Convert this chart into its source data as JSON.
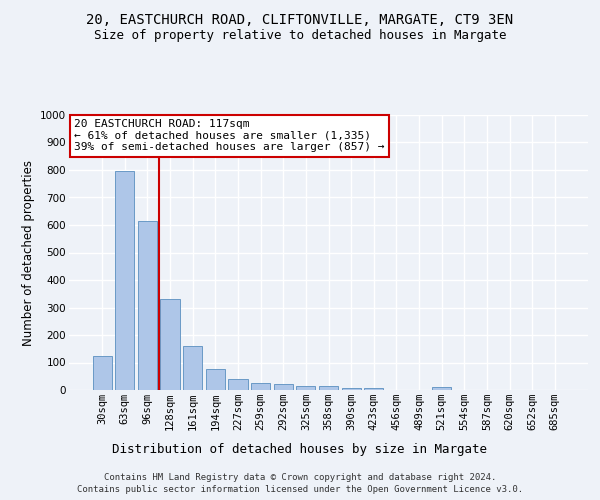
{
  "title1": "20, EASTCHURCH ROAD, CLIFTONVILLE, MARGATE, CT9 3EN",
  "title2": "Size of property relative to detached houses in Margate",
  "xlabel": "Distribution of detached houses by size in Margate",
  "ylabel": "Number of detached properties",
  "categories": [
    "30sqm",
    "63sqm",
    "96sqm",
    "128sqm",
    "161sqm",
    "194sqm",
    "227sqm",
    "259sqm",
    "292sqm",
    "325sqm",
    "358sqm",
    "390sqm",
    "423sqm",
    "456sqm",
    "489sqm",
    "521sqm",
    "554sqm",
    "587sqm",
    "620sqm",
    "652sqm",
    "685sqm"
  ],
  "values": [
    125,
    795,
    615,
    330,
    160,
    78,
    40,
    25,
    22,
    16,
    15,
    7,
    7,
    0,
    0,
    10,
    0,
    0,
    0,
    0,
    0
  ],
  "bar_color": "#aec6e8",
  "bar_edge_color": "#5a8fc0",
  "vline_color": "#cc0000",
  "annotation_text": "20 EASTCHURCH ROAD: 117sqm\n← 61% of detached houses are smaller (1,335)\n39% of semi-detached houses are larger (857) →",
  "annotation_box_color": "#ffffff",
  "annotation_box_edgecolor": "#cc0000",
  "ylim": [
    0,
    1000
  ],
  "yticks": [
    0,
    100,
    200,
    300,
    400,
    500,
    600,
    700,
    800,
    900,
    1000
  ],
  "background_color": "#eef2f8",
  "plot_bg_color": "#eef2f8",
  "grid_color": "#ffffff",
  "footer1": "Contains HM Land Registry data © Crown copyright and database right 2024.",
  "footer2": "Contains public sector information licensed under the Open Government Licence v3.0.",
  "title1_fontsize": 10,
  "title2_fontsize": 9,
  "xlabel_fontsize": 9,
  "ylabel_fontsize": 8.5,
  "tick_fontsize": 7.5,
  "annotation_fontsize": 8,
  "footer_fontsize": 6.5
}
